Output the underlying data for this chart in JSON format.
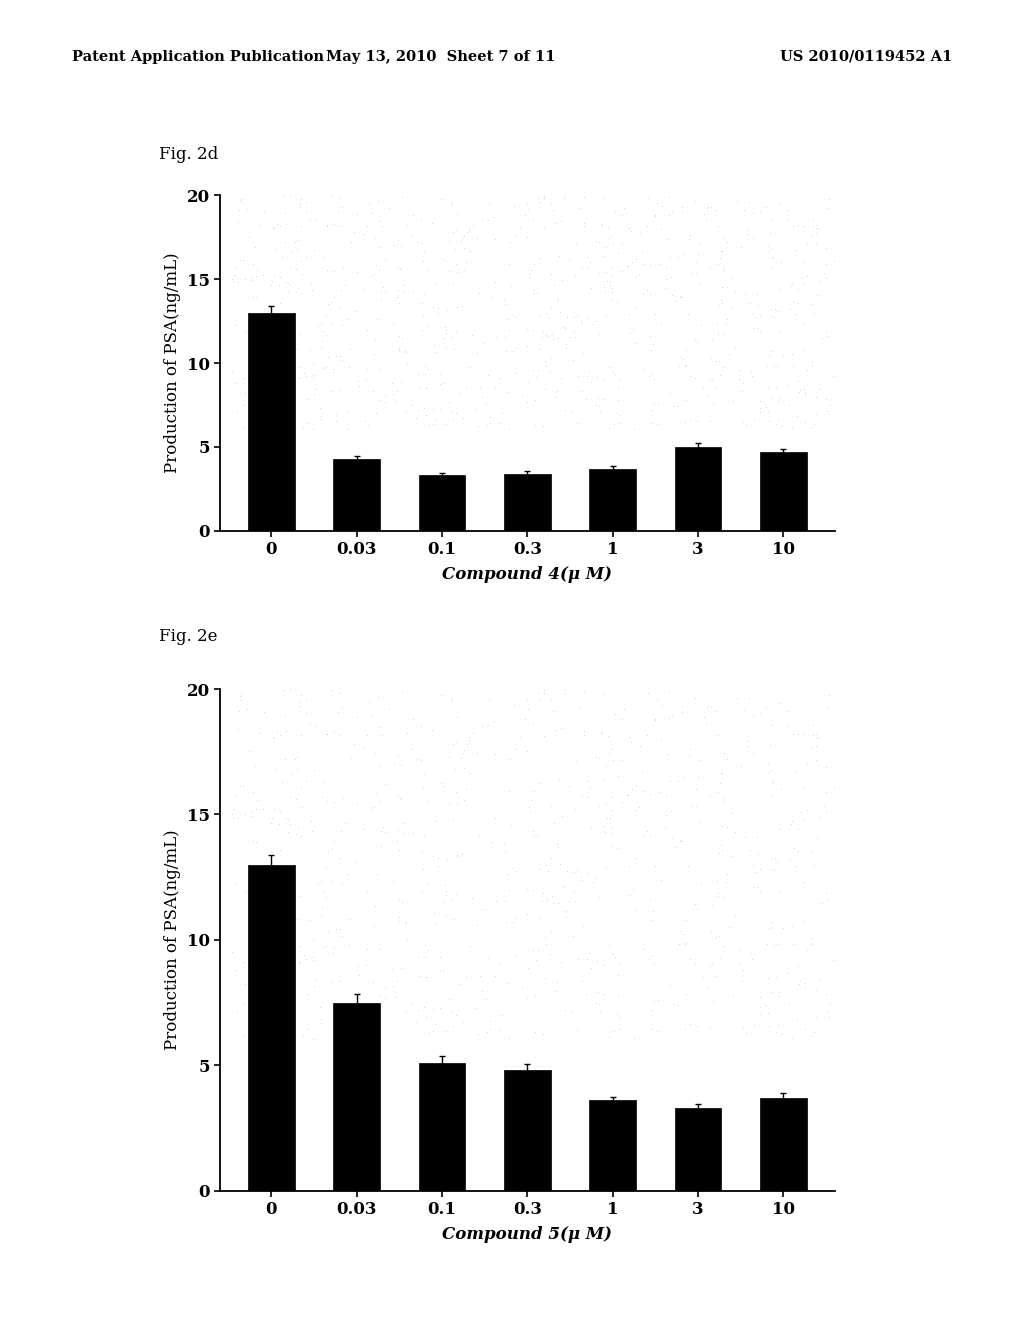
{
  "fig2d": {
    "title": "Fig. 2d",
    "xlabel": "Compound 4(μ M)",
    "ylabel": "Production of PSA(ng/mL)",
    "xtick_labels": [
      "0",
      "0.03",
      "0.1",
      "0.3",
      "1",
      "3",
      "10"
    ],
    "values": [
      13.0,
      4.3,
      3.3,
      3.4,
      3.7,
      5.0,
      4.7
    ],
    "errors": [
      0.4,
      0.15,
      0.15,
      0.15,
      0.15,
      0.2,
      0.15
    ],
    "ylim": [
      0,
      20
    ],
    "yticks": [
      0,
      5,
      10,
      15,
      20
    ],
    "bar_color": "#000000",
    "bar_width": 0.55
  },
  "fig2e": {
    "title": "Fig. 2e",
    "xlabel": "Compound 5(μ M)",
    "ylabel": "Production of PSA(ng/mL)",
    "xtick_labels": [
      "0",
      "0.03",
      "0.1",
      "0.3",
      "1",
      "3",
      "10"
    ],
    "values": [
      13.0,
      7.5,
      5.1,
      4.8,
      3.6,
      3.3,
      3.7
    ],
    "errors": [
      0.4,
      0.35,
      0.25,
      0.25,
      0.15,
      0.15,
      0.2
    ],
    "ylim": [
      0,
      20
    ],
    "yticks": [
      0,
      5,
      10,
      15,
      20
    ],
    "bar_color": "#000000",
    "bar_width": 0.55
  },
  "header_left": "Patent Application Publication",
  "header_mid": "May 13, 2010  Sheet 7 of 11",
  "header_right": "US 2010/0119452 A1",
  "bg_color": "#ffffff",
  "text_color": "#000000",
  "axis_font_size": 12,
  "label_font_size": 12,
  "fig_title_font_size": 12,
  "header_font_size": 10.5
}
